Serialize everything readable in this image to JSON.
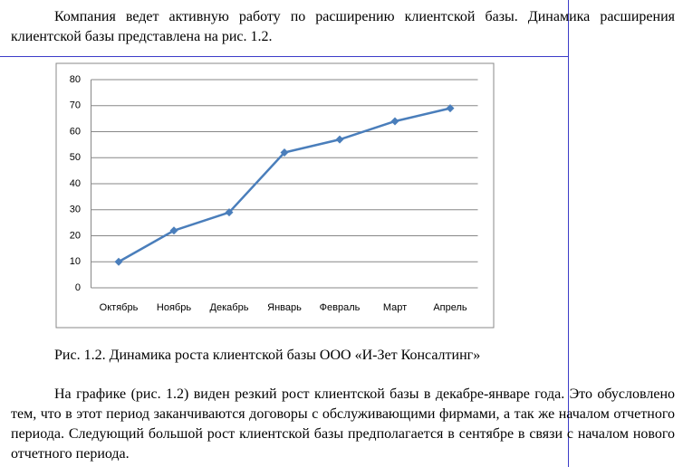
{
  "paragraph_1": "Компания ведет активную работу по расширению клиентской базы. Динамика расширения клиентской базы представлена на рис. 1.2.",
  "chart_data": {
    "type": "line",
    "categories": [
      "Октябрь",
      "Ноябрь",
      "Декабрь",
      "Январь",
      "Февраль",
      "Март",
      "Апрель"
    ],
    "values": [
      10,
      22,
      29,
      52,
      57,
      64,
      69
    ],
    "color": "#4a7ebb",
    "ylim": [
      0,
      80
    ],
    "yticks": [
      0,
      10,
      20,
      30,
      40,
      50,
      60,
      70,
      80
    ],
    "grid": true
  },
  "caption": "Рис. 1.2. Динамика роста клиентской базы ООО «И-Зет Консалтинг»",
  "paragraph_2": "На графике (рис. 1.2) виден резкий рост клиентской базы в декабре-январе года. Это обусловлено тем, что в этот период заканчиваются договоры с обслуживающими фирмами, а так же началом отчетного периода. Следующий большой рост клиентской базы предполагается в сентябре в связи с началом нового отчетного периода."
}
